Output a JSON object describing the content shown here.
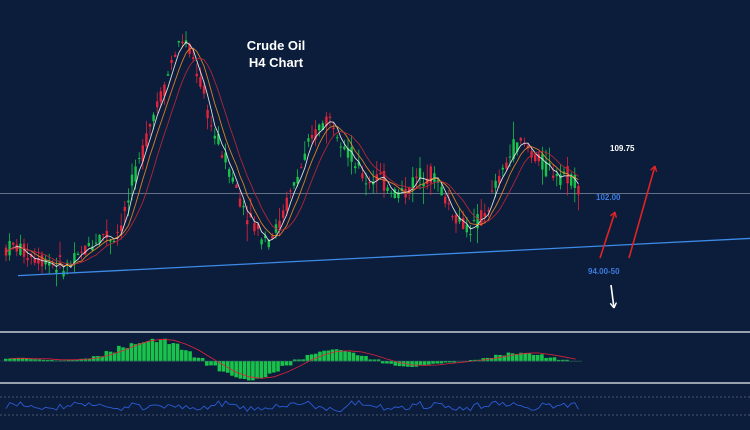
{
  "chart_data": {
    "type": "candlestick",
    "title": "Crude Oil",
    "subtitle": "H4 Chart",
    "xlabel": "",
    "ylabel": "",
    "ylim": [
      91,
      115
    ],
    "grid": false,
    "candles_approx": [
      [
        1,
        96.4
      ],
      [
        2,
        96.6
      ],
      [
        3,
        96.1
      ],
      [
        4,
        95.8
      ],
      [
        5,
        95.6
      ],
      [
        6,
        95.2
      ],
      [
        7,
        94.9
      ],
      [
        8,
        95.3
      ],
      [
        9,
        96.2
      ],
      [
        10,
        97.0
      ],
      [
        11,
        97.6
      ],
      [
        12,
        97.2
      ],
      [
        13,
        98.6
      ],
      [
        14,
        101.5
      ],
      [
        15,
        104.0
      ],
      [
        16,
        106.8
      ],
      [
        17,
        108.5
      ],
      [
        18,
        111.0
      ],
      [
        19,
        112.8
      ],
      [
        20,
        111.5
      ],
      [
        21,
        109.2
      ],
      [
        22,
        106.0
      ],
      [
        23,
        104.2
      ],
      [
        24,
        102.4
      ],
      [
        25,
        100.3
      ],
      [
        26,
        98.8
      ],
      [
        27,
        97.6
      ],
      [
        28,
        97.3
      ],
      [
        29,
        98.2
      ],
      [
        30,
        100.4
      ],
      [
        31,
        102.3
      ],
      [
        32,
        104.2
      ],
      [
        33,
        105.8
      ],
      [
        34,
        106.6
      ],
      [
        35,
        105.8
      ],
      [
        36,
        104.2
      ],
      [
        37,
        102.6
      ],
      [
        38,
        101.6
      ],
      [
        39,
        102.1
      ],
      [
        40,
        101.4
      ],
      [
        41,
        100.7
      ],
      [
        42,
        100.9
      ],
      [
        43,
        101.8
      ],
      [
        44,
        102.4
      ],
      [
        45,
        101.9
      ],
      [
        46,
        100.3
      ],
      [
        47,
        99.0
      ],
      [
        48,
        98.2
      ],
      [
        49,
        98.1
      ],
      [
        50,
        99.0
      ],
      [
        51,
        100.9
      ],
      [
        52,
        102.5
      ],
      [
        53,
        104.3
      ],
      [
        54,
        104.6
      ],
      [
        55,
        103.8
      ],
      [
        56,
        102.9
      ],
      [
        57,
        102.5
      ],
      [
        58,
        102.3
      ],
      [
        59,
        102.0
      ],
      [
        60,
        101.1
      ]
    ],
    "moving_averages": [
      "white",
      "orange",
      "red"
    ],
    "annotations": [
      {
        "label": "109.75",
        "color": "#ffffff"
      },
      {
        "label": "102.00",
        "color": "#3d7be0"
      },
      {
        "label": "94.00-50",
        "color": "#3d7be0"
      }
    ],
    "levels": {
      "horizontal": 100.7
    },
    "trendline": {
      "from": [
        1,
        94.3
      ],
      "to": [
        76,
        97.2
      ]
    },
    "arrows": [
      {
        "direction": "up",
        "color": "#e02424",
        "target": "102.00"
      },
      {
        "direction": "up",
        "color": "#e02424",
        "target": "109.75"
      },
      {
        "direction": "down",
        "color": "#ffffff",
        "target": "below 94.00-50"
      }
    ],
    "indicators": [
      {
        "type": "macd_histogram",
        "color": "#19c24a",
        "values": [
          0.4,
          0.5,
          0.3,
          0.2,
          0.1,
          0.2,
          0.4,
          0.8,
          1.6,
          2.6,
          3.4,
          3.8,
          3.6,
          2.9,
          1.8,
          0.6,
          -0.8,
          -2.0,
          -2.8,
          -3.1,
          -2.8,
          -2.0,
          -0.8,
          0.3,
          1.2,
          1.7,
          1.9,
          1.6,
          1.0,
          0.3,
          -0.4,
          -0.8,
          -0.9,
          -0.6,
          -0.4,
          -0.2,
          0.0,
          0.2,
          0.5,
          1.0,
          1.4,
          1.5,
          1.2,
          0.6,
          0.2,
          0.0
        ]
      },
      {
        "type": "line_oscillator",
        "color": "#2c5bd6"
      }
    ]
  }
}
